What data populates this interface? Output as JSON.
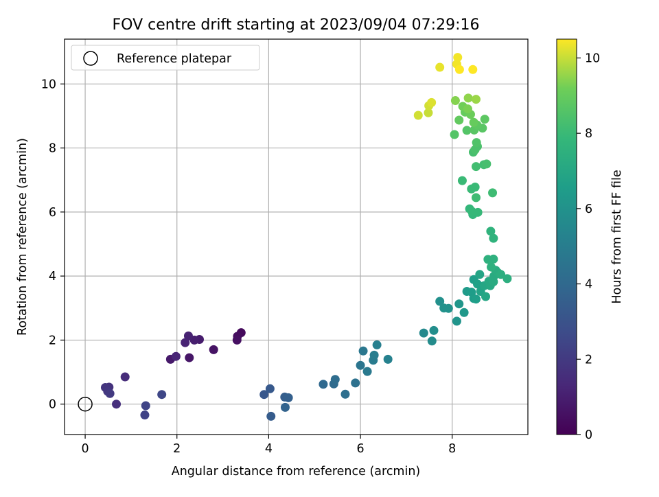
{
  "chart_data": {
    "type": "scatter",
    "title": "FOV centre drift starting at 2023/09/04 07:29:16",
    "xlabel": "Angular distance from reference (arcmin)",
    "ylabel": "Rotation from reference (arcmin)",
    "xlim": [
      -0.45,
      9.65
    ],
    "ylim": [
      -0.95,
      11.4
    ],
    "xticks": [
      "0",
      "2",
      "4",
      "6",
      "8"
    ],
    "yticks": [
      "0",
      "2",
      "4",
      "6",
      "8",
      "10"
    ],
    "grid": true,
    "legend": {
      "placement": "top-left",
      "label": "Reference platepar"
    },
    "reference_point": {
      "x": 0,
      "y": 0
    },
    "colorbar": {
      "label": "Hours from first FF file",
      "range": [
        0,
        10.5
      ],
      "ticks": [
        "0",
        "2",
        "4",
        "6",
        "8",
        "10"
      ],
      "colormap": "viridis"
    },
    "points": [
      [
        3.4,
        2.23,
        0.3
      ],
      [
        3.32,
        2.12,
        0.4
      ],
      [
        3.31,
        2.0,
        0.5
      ],
      [
        2.8,
        1.7,
        0.6
      ],
      [
        2.27,
        1.45,
        0.7
      ],
      [
        1.86,
        1.4,
        0.8
      ],
      [
        2.49,
        2.02,
        0.9
      ],
      [
        2.38,
        2.0,
        1.0
      ],
      [
        2.25,
        2.13,
        1.1
      ],
      [
        2.18,
        1.92,
        1.15
      ],
      [
        1.98,
        1.49,
        1.2
      ],
      [
        0.87,
        0.85,
        1.5
      ],
      [
        0.68,
        0.0,
        1.6
      ],
      [
        0.52,
        0.53,
        1.7
      ],
      [
        0.44,
        0.52,
        1.8
      ],
      [
        0.49,
        0.4,
        1.9
      ],
      [
        0.54,
        0.33,
        2.0
      ],
      [
        1.3,
        -0.34,
        2.3
      ],
      [
        1.32,
        -0.05,
        2.4
      ],
      [
        1.67,
        0.3,
        2.5
      ],
      [
        3.9,
        0.3,
        3.2
      ],
      [
        4.03,
        0.48,
        3.3
      ],
      [
        4.05,
        -0.38,
        3.4
      ],
      [
        4.35,
        0.22,
        3.5
      ],
      [
        4.43,
        0.2,
        3.6
      ],
      [
        4.36,
        -0.1,
        3.7
      ],
      [
        5.19,
        0.62,
        4.0
      ],
      [
        5.42,
        0.63,
        4.1
      ],
      [
        5.45,
        0.77,
        4.2
      ],
      [
        5.67,
        0.31,
        4.3
      ],
      [
        5.89,
        0.66,
        4.4
      ],
      [
        6.0,
        1.21,
        4.6
      ],
      [
        6.06,
        1.66,
        4.7
      ],
      [
        6.15,
        1.02,
        4.8
      ],
      [
        6.28,
        1.37,
        4.9
      ],
      [
        6.3,
        1.53,
        5.0
      ],
      [
        6.36,
        1.85,
        5.1
      ],
      [
        6.6,
        1.4,
        5.2
      ],
      [
        7.38,
        2.22,
        5.6
      ],
      [
        7.56,
        1.97,
        5.7
      ],
      [
        7.6,
        2.3,
        5.8
      ],
      [
        7.73,
        3.21,
        5.9
      ],
      [
        7.82,
        3.0,
        6.0
      ],
      [
        7.92,
        2.99,
        6.0
      ],
      [
        8.1,
        2.59,
        6.1
      ],
      [
        8.15,
        3.13,
        6.2
      ],
      [
        8.26,
        2.86,
        6.3
      ],
      [
        8.32,
        3.52,
        6.4
      ],
      [
        8.42,
        3.5,
        6.5
      ],
      [
        8.47,
        3.3,
        6.5
      ],
      [
        8.52,
        3.28,
        6.6
      ],
      [
        8.47,
        3.89,
        6.6
      ],
      [
        8.55,
        3.75,
        6.7
      ],
      [
        8.62,
        3.52,
        6.8
      ],
      [
        8.6,
        4.05,
        6.9
      ],
      [
        8.7,
        3.7,
        7.0
      ],
      [
        8.73,
        3.36,
        7.0
      ],
      [
        8.8,
        3.84,
        7.1
      ],
      [
        8.83,
        3.7,
        7.1
      ],
      [
        8.9,
        3.82,
        7.2
      ],
      [
        8.91,
        4.0,
        7.2
      ],
      [
        8.95,
        4.18,
        7.3
      ],
      [
        9.0,
        4.1,
        7.3
      ],
      [
        9.06,
        4.05,
        7.4
      ],
      [
        9.2,
        3.92,
        7.4
      ],
      [
        8.78,
        4.52,
        7.5
      ],
      [
        8.9,
        4.53,
        7.5
      ],
      [
        8.85,
        4.28,
        7.5
      ],
      [
        8.84,
        5.4,
        7.6
      ],
      [
        8.9,
        5.18,
        7.6
      ],
      [
        8.38,
        6.1,
        7.8
      ],
      [
        8.45,
        5.92,
        7.8
      ],
      [
        8.56,
        5.99,
        7.9
      ],
      [
        8.43,
        6.02,
        7.9
      ],
      [
        8.42,
        6.72,
        8.0
      ],
      [
        8.5,
        6.78,
        8.0
      ],
      [
        8.22,
        6.98,
        8.0
      ],
      [
        8.52,
        6.45,
        8.1
      ],
      [
        8.88,
        6.6,
        8.1
      ],
      [
        8.52,
        7.42,
        8.2
      ],
      [
        8.69,
        7.48,
        8.2
      ],
      [
        8.75,
        7.5,
        8.3
      ],
      [
        8.46,
        7.87,
        8.3
      ],
      [
        8.5,
        7.95,
        8.4
      ],
      [
        8.55,
        8.05,
        8.4
      ],
      [
        8.53,
        8.17,
        8.5
      ],
      [
        8.05,
        8.42,
        8.6
      ],
      [
        8.32,
        8.55,
        8.6
      ],
      [
        8.48,
        8.56,
        8.7
      ],
      [
        8.66,
        8.62,
        8.7
      ],
      [
        8.54,
        8.72,
        8.8
      ],
      [
        8.71,
        8.9,
        8.8
      ],
      [
        8.15,
        8.87,
        8.9
      ],
      [
        8.47,
        8.8,
        9.0
      ],
      [
        8.28,
        9.12,
        9.0
      ],
      [
        8.4,
        9.05,
        9.1
      ],
      [
        8.23,
        9.3,
        9.2
      ],
      [
        8.34,
        9.22,
        9.3
      ],
      [
        8.07,
        9.48,
        9.4
      ],
      [
        8.35,
        9.56,
        9.5
      ],
      [
        8.52,
        9.52,
        9.6
      ],
      [
        7.48,
        9.1,
        10.0
      ],
      [
        7.26,
        9.02,
        10.1
      ],
      [
        7.49,
        9.32,
        10.1
      ],
      [
        7.55,
        9.42,
        10.2
      ],
      [
        7.73,
        10.52,
        10.3
      ],
      [
        8.1,
        10.62,
        10.4
      ],
      [
        8.12,
        10.83,
        10.4
      ],
      [
        8.16,
        10.45,
        10.5
      ],
      [
        8.45,
        10.45,
        10.5
      ]
    ]
  }
}
